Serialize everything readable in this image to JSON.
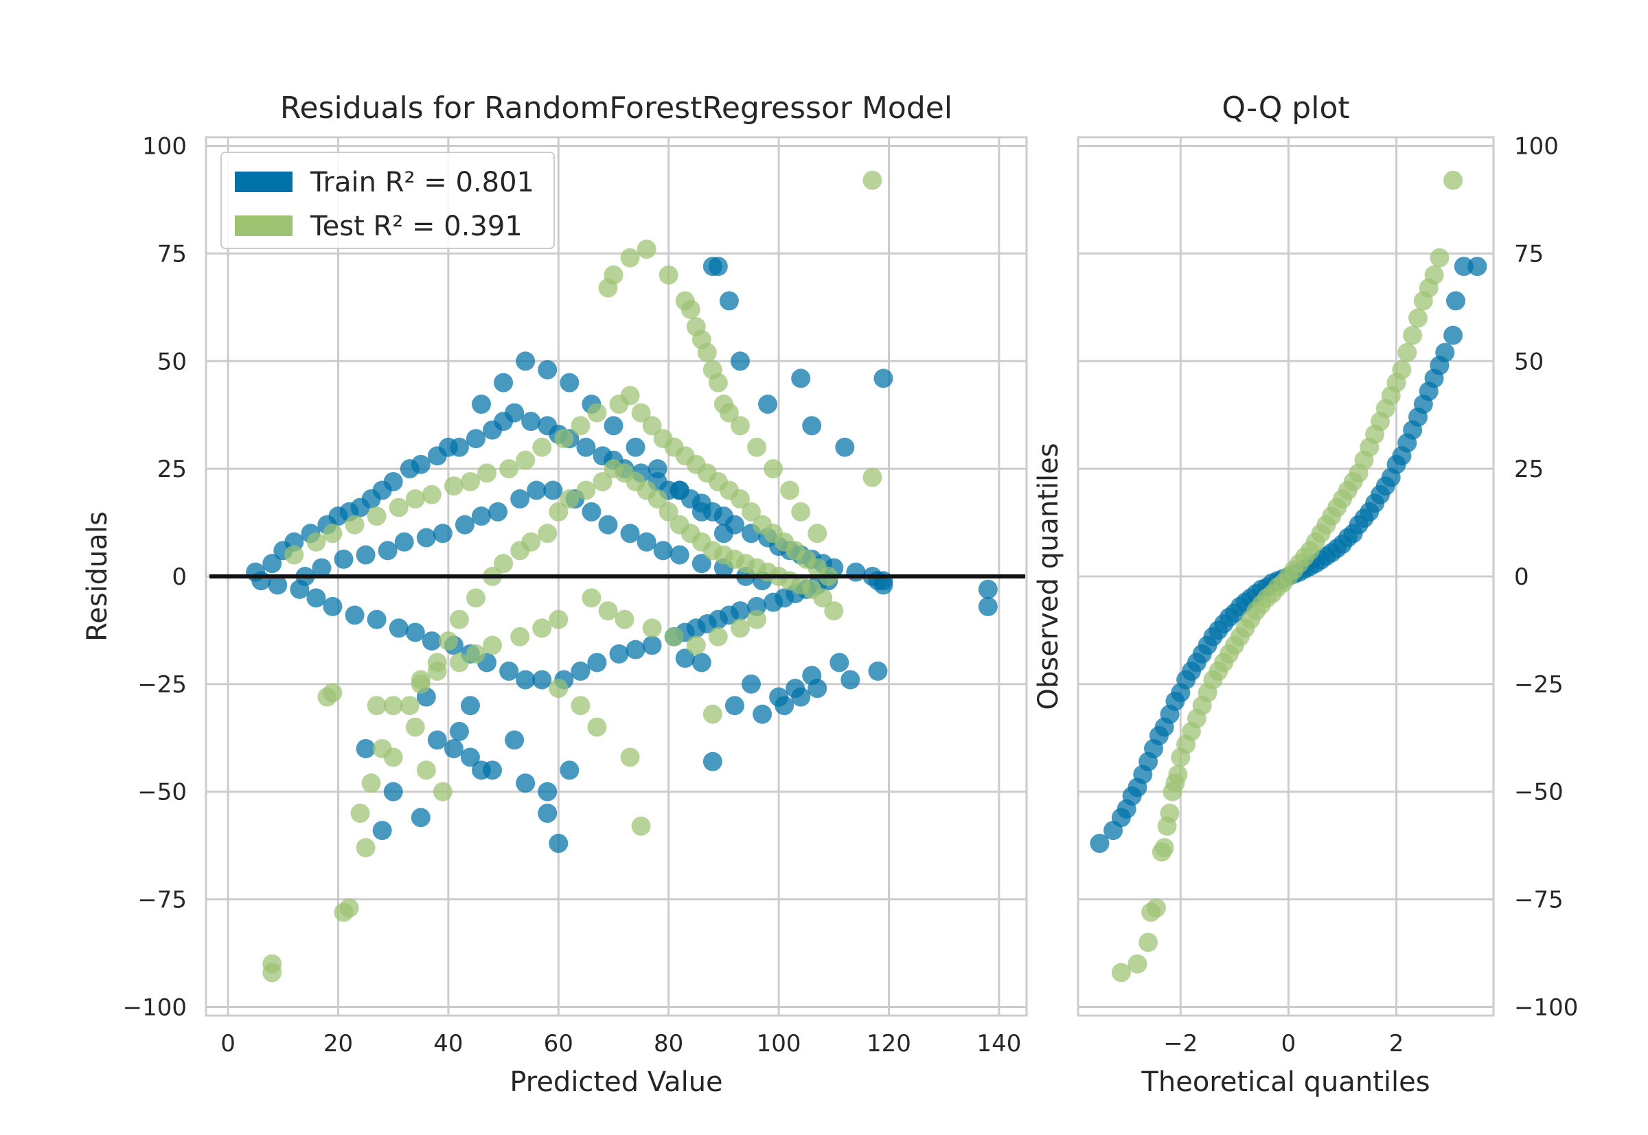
{
  "colors": {
    "train": "#0072a8",
    "test": "#9dc271",
    "grid": "#cccccc",
    "zero_line": "#111111",
    "text": "#262626"
  },
  "chart_data": [
    {
      "type": "scatter",
      "title": "Residuals for RandomForestRegressor Model",
      "xlabel": "Predicted Value",
      "ylabel": "Residuals",
      "xlim": [
        -4,
        145
      ],
      "ylim": [
        -102,
        102
      ],
      "xticks": [
        0,
        20,
        40,
        60,
        80,
        100,
        120,
        140
      ],
      "xtick_labels": [
        "0",
        "20",
        "40",
        "60",
        "80",
        "100",
        "120",
        "140"
      ],
      "yticks": [
        -100,
        -75,
        -50,
        -25,
        0,
        25,
        50,
        75,
        100
      ],
      "ytick_labels": [
        "−100",
        "−75",
        "−50",
        "−25",
        "0",
        "25",
        "50",
        "75",
        "100"
      ],
      "grid": true,
      "legend_position": "top-left",
      "legend": [
        {
          "series": "train",
          "label": "Train R² = 0.801"
        },
        {
          "series": "test",
          "label": "Test R² = 0.391"
        }
      ],
      "reference_line": {
        "y": 0
      },
      "train_r2": 0.801,
      "test_r2": 0.391,
      "train": {
        "x": [
          5,
          8,
          10,
          12,
          15,
          18,
          20,
          22,
          24,
          26,
          28,
          30,
          33,
          35,
          38,
          40,
          42,
          45,
          48,
          50,
          52,
          55,
          58,
          60,
          62,
          65,
          68,
          70,
          72,
          75,
          78,
          80,
          82,
          84,
          86,
          88,
          90,
          92,
          95,
          98,
          100,
          102,
          104,
          106,
          108,
          110,
          114,
          117,
          118,
          119,
          119,
          138,
          138,
          6,
          9,
          13,
          16,
          19,
          23,
          27,
          31,
          34,
          37,
          41,
          44,
          47,
          51,
          54,
          57,
          61,
          64,
          67,
          71,
          74,
          77,
          81,
          83,
          85,
          87,
          89,
          91,
          93,
          96,
          99,
          101,
          103,
          105,
          107,
          109,
          14,
          17,
          21,
          25,
          29,
          32,
          36,
          39,
          43,
          46,
          49,
          53,
          56,
          59,
          63,
          66,
          69,
          73,
          76,
          79,
          82,
          86,
          90,
          94,
          97,
          46,
          50,
          54,
          58,
          62,
          66,
          70,
          74,
          78,
          82,
          86,
          90,
          88,
          89,
          91,
          93,
          98,
          104,
          106,
          112,
          119,
          88,
          92,
          97,
          101,
          104,
          107,
          113,
          118,
          86,
          83,
          95,
          100,
          103,
          106,
          111,
          60,
          58,
          54,
          48,
          44,
          41,
          38,
          35,
          30,
          28,
          25,
          58,
          62,
          46,
          52,
          42,
          36,
          44
        ],
        "y": [
          1,
          3,
          6,
          8,
          10,
          12,
          14,
          15,
          16,
          18,
          20,
          22,
          25,
          26,
          28,
          30,
          30,
          32,
          34,
          36,
          38,
          36,
          35,
          33,
          32,
          30,
          28,
          27,
          25,
          24,
          22,
          20,
          20,
          18,
          17,
          15,
          14,
          12,
          10,
          9,
          7,
          6,
          5,
          4,
          3,
          2,
          1,
          0,
          -1,
          -1,
          -2,
          -3,
          -7,
          -1,
          -2,
          -3,
          -5,
          -7,
          -9,
          -10,
          -12,
          -13,
          -15,
          -16,
          -18,
          -20,
          -22,
          -24,
          -24,
          -24,
          -22,
          -20,
          -18,
          -17,
          -16,
          -14,
          -13,
          -12,
          -11,
          -10,
          -9,
          -8,
          -7,
          -6,
          -5,
          -4,
          -3,
          -2,
          -1,
          0,
          2,
          4,
          5,
          6,
          8,
          9,
          10,
          12,
          14,
          15,
          18,
          20,
          20,
          18,
          15,
          12,
          10,
          8,
          6,
          5,
          3,
          2,
          0,
          -1,
          40,
          45,
          50,
          48,
          45,
          40,
          35,
          30,
          25,
          20,
          15,
          10,
          72,
          72,
          64,
          50,
          40,
          46,
          35,
          30,
          46,
          -43,
          -30,
          -32,
          -30,
          -28,
          -26,
          -24,
          -22,
          -20,
          -19,
          -25,
          -28,
          -26,
          -23,
          -20,
          -62,
          -50,
          -48,
          -45,
          -42,
          -40,
          -38,
          -56,
          -50,
          -59,
          -40,
          -55,
          -45,
          -45,
          -38,
          -36,
          -28,
          -30
        ]
      },
      "test": {
        "x": [
          8,
          8,
          21,
          22,
          25,
          24,
          26,
          30,
          33,
          35,
          38,
          40,
          42,
          45,
          48,
          50,
          53,
          55,
          58,
          60,
          62,
          65,
          68,
          70,
          72,
          74,
          76,
          78,
          80,
          82,
          84,
          86,
          88,
          90,
          92,
          94,
          96,
          98,
          100,
          102,
          104,
          106,
          108,
          110,
          117,
          117,
          12,
          16,
          19,
          23,
          27,
          31,
          34,
          37,
          41,
          44,
          47,
          51,
          54,
          57,
          61,
          64,
          67,
          71,
          73,
          75,
          77,
          79,
          81,
          83,
          85,
          87,
          89,
          91,
          93,
          95,
          97,
          99,
          101,
          103,
          105,
          107,
          109,
          69,
          70,
          73,
          76,
          80,
          83,
          84,
          85,
          86,
          87,
          88,
          89,
          90,
          91,
          93,
          96,
          99,
          102,
          104,
          107,
          66,
          69,
          72,
          77,
          81,
          85,
          89,
          93,
          96,
          60,
          57,
          53,
          48,
          45,
          42,
          38,
          35,
          30,
          28,
          18,
          19,
          27,
          34,
          36,
          39,
          75,
          73,
          67,
          64,
          60,
          88
        ],
        "y": [
          -90,
          -92,
          -78,
          -77,
          -63,
          -55,
          -48,
          -42,
          -30,
          -25,
          -20,
          -15,
          -10,
          -5,
          0,
          3,
          6,
          8,
          10,
          15,
          18,
          20,
          22,
          25,
          24,
          22,
          20,
          18,
          15,
          12,
          10,
          8,
          6,
          5,
          4,
          3,
          2,
          1,
          0,
          -1,
          -2,
          -3,
          -5,
          -8,
          23,
          92,
          5,
          8,
          10,
          12,
          14,
          16,
          18,
          19,
          21,
          22,
          24,
          25,
          27,
          30,
          32,
          35,
          38,
          40,
          42,
          38,
          35,
          32,
          30,
          28,
          26,
          24,
          22,
          20,
          18,
          15,
          12,
          10,
          8,
          6,
          4,
          2,
          0,
          67,
          70,
          74,
          76,
          70,
          64,
          62,
          58,
          55,
          52,
          48,
          45,
          40,
          38,
          35,
          30,
          25,
          20,
          15,
          10,
          -5,
          -8,
          -10,
          -12,
          -14,
          -16,
          -14,
          -12,
          -10,
          -10,
          -12,
          -14,
          -16,
          -18,
          -20,
          -22,
          -24,
          -30,
          -40,
          -28,
          -27,
          -30,
          -35,
          -45,
          -50,
          -58,
          -42,
          -35,
          -30,
          -26,
          -32
        ]
      }
    },
    {
      "type": "scatter",
      "title": "Q-Q plot",
      "xlabel": "Theoretical quantiles",
      "ylabel": "Observed quantiles",
      "xlim": [
        -3.9,
        3.8
      ],
      "ylim": [
        -102,
        102
      ],
      "xticks": [
        -2,
        0,
        2
      ],
      "xtick_labels": [
        "−2",
        "0",
        "2"
      ],
      "yticks": [
        -100,
        -75,
        -50,
        -25,
        0,
        25,
        50,
        75,
        100
      ],
      "ytick_labels": [
        "−100",
        "−75",
        "−50",
        "−25",
        "0",
        "25",
        "50",
        "75",
        "100"
      ],
      "y_axis_position": "right",
      "grid": true,
      "train": {
        "x": [
          -3.5,
          -3.25,
          -3.1,
          -3.0,
          -2.9,
          -2.8,
          -2.7,
          -2.6,
          -2.5,
          -2.4,
          -2.3,
          -2.2,
          -2.1,
          -2.0,
          -1.9,
          -1.8,
          -1.7,
          -1.6,
          -1.5,
          -1.4,
          -1.3,
          -1.2,
          -1.1,
          -1.0,
          -0.9,
          -0.8,
          -0.7,
          -0.6,
          -0.5,
          -0.4,
          -0.3,
          -0.2,
          -0.1,
          0.0,
          0.1,
          0.2,
          0.3,
          0.4,
          0.5,
          0.6,
          0.7,
          0.8,
          0.9,
          1.0,
          1.1,
          1.2,
          1.3,
          1.4,
          1.5,
          1.6,
          1.7,
          1.8,
          1.9,
          2.0,
          2.1,
          2.2,
          2.3,
          2.4,
          2.5,
          2.6,
          2.7,
          2.8,
          2.9,
          3.05,
          3.1,
          3.25,
          3.5
        ],
        "y": [
          -62,
          -59,
          -56,
          -54,
          -51,
          -49,
          -46,
          -43,
          -40,
          -37,
          -35,
          -32,
          -29,
          -27,
          -24,
          -22,
          -20,
          -18,
          -16,
          -14,
          -12.5,
          -11,
          -9.5,
          -8.5,
          -7,
          -6,
          -5,
          -4,
          -3,
          -2.5,
          -1.5,
          -1,
          -0.5,
          0,
          0.5,
          1,
          1.7,
          2.3,
          3,
          3.8,
          4.7,
          5.5,
          6.5,
          7.5,
          9,
          10,
          12,
          13.5,
          15,
          17,
          19,
          21,
          23,
          26,
          28,
          31,
          34,
          37,
          40,
          43,
          46,
          49,
          52,
          56,
          64,
          72,
          72
        ]
      },
      "test": {
        "x": [
          -3.1,
          -2.8,
          -2.6,
          -2.55,
          -2.45,
          -2.35,
          -2.3,
          -2.25,
          -2.2,
          -2.15,
          -2.1,
          -2.05,
          -2.0,
          -1.9,
          -1.8,
          -1.7,
          -1.6,
          -1.5,
          -1.4,
          -1.3,
          -1.2,
          -1.1,
          -1.0,
          -0.9,
          -0.8,
          -0.7,
          -0.6,
          -0.5,
          -0.4,
          -0.3,
          -0.2,
          -0.1,
          0.0,
          0.1,
          0.2,
          0.3,
          0.4,
          0.5,
          0.6,
          0.7,
          0.8,
          0.9,
          1.0,
          1.1,
          1.2,
          1.3,
          1.4,
          1.5,
          1.6,
          1.7,
          1.8,
          1.9,
          2.0,
          2.1,
          2.2,
          2.3,
          2.4,
          2.5,
          2.6,
          2.7,
          2.8,
          3.05
        ],
        "y": [
          -92,
          -90,
          -85,
          -78,
          -77,
          -64,
          -63,
          -58,
          -55,
          -50,
          -48,
          -46,
          -42,
          -39,
          -36,
          -33,
          -30,
          -27,
          -24,
          -22,
          -20,
          -18,
          -16,
          -14,
          -12,
          -10,
          -8,
          -6.5,
          -5,
          -4,
          -2.5,
          -1.5,
          0,
          1.5,
          3,
          4.5,
          6,
          8,
          10,
          12,
          14,
          16,
          18,
          20,
          22,
          24,
          27,
          30,
          33,
          36,
          39,
          42,
          45,
          48,
          52,
          56,
          60,
          64,
          67,
          70,
          74,
          92
        ]
      }
    }
  ]
}
